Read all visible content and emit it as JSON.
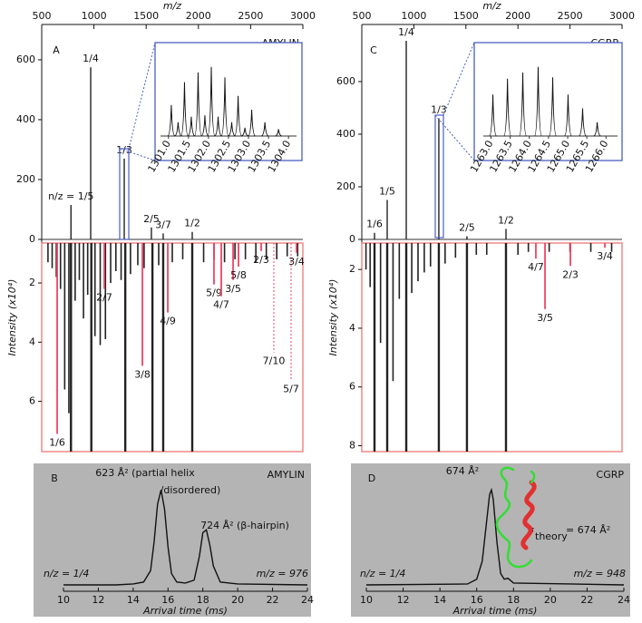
{
  "chart_data": [
    {
      "type": "mass-spectrum",
      "panel": "A",
      "label": "AMYLIN",
      "xlabel": "m/z",
      "ylabel": "Intensity (x10⁴)",
      "xlim": [
        500,
        3000
      ],
      "xticks": [
        500,
        1000,
        1500,
        2000,
        2500,
        3000
      ],
      "ylim": [
        0,
        718
      ],
      "yticks": [
        0,
        200,
        400,
        600
      ],
      "x": [
        780,
        969,
        1290,
        1550,
        1663,
        1941
      ],
      "values": [
        115,
        575,
        270,
        40,
        20,
        25
      ],
      "labels": [
        "n/z = 1/5",
        "1/4",
        "1/3",
        "2/5",
        "3/7",
        "1/2"
      ],
      "inset": {
        "xlim": [
          1300.8,
          1304.2
        ],
        "ylim": [
          0,
          1.05
        ],
        "xticks": [
          {
            "value": 1301.0,
            "label": "1301.0"
          },
          1301.5,
          {
            "value": 1302.0,
            "label": "1302.0"
          },
          1302.5,
          {
            "value": 1303.0,
            "label": "1303.0"
          },
          1303.5,
          {
            "value": 1304.0,
            "label": "1304.0"
          }
        ],
        "x": [
          1301.07,
          1301.24,
          1301.4,
          1301.57,
          1301.74,
          1301.91,
          1302.07,
          1302.24,
          1302.41,
          1302.58,
          1302.74,
          1302.91,
          1303.08,
          1303.41,
          1303.75
        ],
        "values": [
          0.45,
          0.2,
          0.78,
          0.28,
          0.92,
          0.3,
          1.0,
          0.28,
          0.85,
          0.2,
          0.58,
          0.12,
          0.38,
          0.2,
          0.1
        ]
      },
      "lower_ylim": [
        0.65,
        7.7
      ],
      "lower_yticks": [
        2,
        4,
        6
      ],
      "streak_x": [
        560,
        600,
        640,
        680,
        720,
        760,
        780,
        820,
        860,
        900,
        940,
        975,
        1010,
        1060,
        1110,
        1160,
        1210,
        1260,
        1300,
        1350,
        1420,
        1480,
        1560,
        1620,
        1663,
        1750,
        1850,
        1941,
        2050,
        2150,
        2250,
        2350,
        2450,
        2550,
        2650,
        2750,
        2850,
        2950
      ],
      "streak_values": [
        1.3,
        1.5,
        1.8,
        2.2,
        5.6,
        6.4,
        7.7,
        2.6,
        1.9,
        3.2,
        2.4,
        7.7,
        3.8,
        4.1,
        3.9,
        2.0,
        1.6,
        1.9,
        7.7,
        1.7,
        1.4,
        1.5,
        7.7,
        1.4,
        7.7,
        1.3,
        1.2,
        7.7,
        1.3,
        1.2,
        1.3,
        1.2,
        1.2,
        1.3,
        1.2,
        1.2,
        1.1,
        1.1
      ],
      "streak_color": "#222222",
      "red_labels": [
        "1/6",
        "2/7",
        "3/8",
        "4/9",
        "5/9",
        "4/7",
        "3/5",
        "5/8",
        "2/3",
        "7/10",
        "5/7",
        "3/4"
      ],
      "red_x": [
        648,
        1099,
        1464,
        1707,
        2149,
        2219,
        2332,
        2384,
        2601,
        2722,
        2887,
        2939
      ],
      "red_values": [
        7.1,
        2.2,
        4.8,
        3.0,
        2.05,
        2.45,
        1.9,
        1.45,
        0.92,
        4.35,
        5.3,
        0.98
      ],
      "red_dashed": [
        false,
        false,
        false,
        false,
        false,
        false,
        false,
        false,
        false,
        true,
        true,
        false
      ],
      "red_color": "#ee4466",
      "color": "#111111",
      "inset_color": "#4a5fc1"
    },
    {
      "type": "line",
      "panel": "B",
      "label": "AMYLIN",
      "xlabel": "Arrival time (ms)",
      "xlim": [
        10,
        24
      ],
      "xticks": [
        10,
        12,
        14,
        16,
        18,
        20,
        22,
        24
      ],
      "ylim": [
        0,
        1.05
      ],
      "x": [
        10,
        13,
        14,
        14.6,
        15,
        15.2,
        15.4,
        15.6,
        15.8,
        16,
        16.2,
        16.5,
        17,
        17.5,
        17.8,
        18,
        18.2,
        18.4,
        18.6,
        19,
        20,
        24
      ],
      "values": [
        0,
        0,
        0.01,
        0.03,
        0.15,
        0.45,
        0.85,
        1.0,
        0.8,
        0.4,
        0.12,
        0.03,
        0.02,
        0.05,
        0.3,
        0.55,
        0.58,
        0.42,
        0.2,
        0.03,
        0.01,
        0
      ],
      "color": "#111111",
      "annotations": [
        "623 Å² (partial helix",
        "/disordered)",
        "724 Å² (β-hairpin)"
      ],
      "charge": "n/z = 1/4",
      "mass": "m/z = 976"
    },
    {
      "type": "mass-spectrum",
      "panel": "C",
      "label": "CGRP",
      "xlabel": "m/z",
      "ylabel": "Intensity (x10⁴)",
      "xlim": [
        500,
        3000
      ],
      "xticks": [
        500,
        1000,
        1500,
        2000,
        2500,
        3000
      ],
      "ylim": [
        0,
        817
      ],
      "yticks": [
        0,
        200,
        400,
        600
      ],
      "x": [
        622,
        744,
        927,
        1240,
        1510,
        1885
      ],
      "values": [
        25,
        150,
        755,
        460,
        12,
        40
      ],
      "labels": [
        "1/6",
        "1/5",
        "1/4",
        "1/3",
        "2/5",
        "1/2"
      ],
      "inset": {
        "xlim": [
          1262.8,
          1266.3
        ],
        "ylim": [
          0,
          1.05
        ],
        "xticks": [
          {
            "value": 1263.0,
            "label": "1263.0"
          },
          1263.5,
          {
            "value": 1264.0,
            "label": "1264.0"
          },
          1264.5,
          {
            "value": 1265.0,
            "label": "1265.0"
          },
          1265.5,
          {
            "value": 1266.0,
            "label": "1266.0"
          }
        ],
        "x": [
          1263.05,
          1263.43,
          1263.83,
          1264.23,
          1264.61,
          1265.01,
          1265.39,
          1265.77
        ],
        "values": [
          0.6,
          0.83,
          0.92,
          1.0,
          0.85,
          0.6,
          0.4,
          0.2
        ]
      },
      "lower_ylim": [
        1.1,
        8.2
      ],
      "lower_yticks": [
        2,
        4,
        6,
        8
      ],
      "streak_x": [
        540,
        580,
        622,
        680,
        744,
        800,
        860,
        927,
        980,
        1040,
        1100,
        1160,
        1240,
        1300,
        1400,
        1510,
        1600,
        1700,
        1885,
        2000,
        2100,
        2300,
        2500,
        2700,
        2900
      ],
      "streak_values": [
        2.0,
        2.6,
        8.2,
        4.5,
        8.2,
        5.8,
        3.0,
        8.2,
        2.8,
        2.4,
        2.1,
        1.9,
        8.2,
        1.8,
        1.6,
        8.2,
        1.5,
        1.5,
        8.2,
        1.5,
        1.4,
        1.4,
        1.4,
        1.4,
        1.4
      ],
      "streak_color": "#222222",
      "red_labels": [
        "4/7",
        "3/5",
        "2/3",
        "3/4"
      ],
      "red_x": [
        2172,
        2260,
        2504,
        2835
      ],
      "red_values": [
        1.63,
        3.35,
        1.88,
        1.26
      ],
      "red_dashed": [
        false,
        false,
        false,
        false
      ],
      "red_color": "#ee4466",
      "color": "#111111",
      "inset_color": "#4a5fc1"
    },
    {
      "type": "line",
      "panel": "D",
      "label": "CGRP",
      "xlabel": "Arrival time (ms)",
      "xlim": [
        10,
        24
      ],
      "xticks": [
        10,
        12,
        14,
        16,
        18,
        20,
        22,
        24
      ],
      "ylim": [
        0,
        1.05
      ],
      "x": [
        10,
        15.5,
        16,
        16.3,
        16.5,
        16.7,
        16.8,
        16.9,
        17.1,
        17.3,
        17.5,
        17.7,
        18,
        24
      ],
      "values": [
        0,
        0.01,
        0.06,
        0.25,
        0.6,
        0.95,
        1.0,
        0.9,
        0.45,
        0.12,
        0.06,
        0.07,
        0.02,
        0
      ],
      "color": "#111111",
      "annotations": [
        "674 Å²"
      ],
      "sigma": [
        "σ",
        "theory",
        "= 674 Å²"
      ],
      "sigma_color": "#33cc33",
      "charge": "n/z = 1/4",
      "mass": "m/z = 948"
    }
  ]
}
